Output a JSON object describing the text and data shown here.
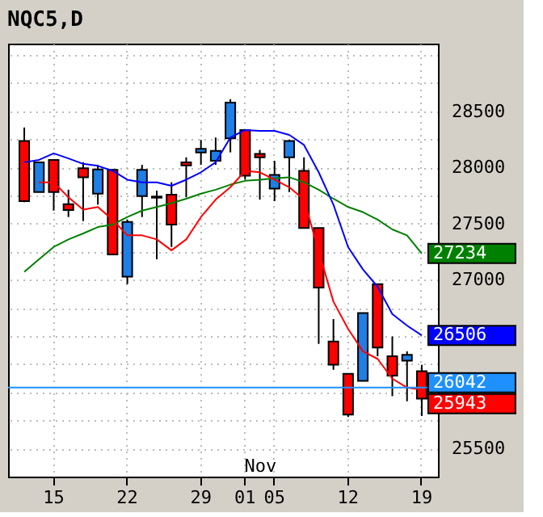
{
  "chart_data": {
    "type": "candlestick",
    "title": "NQC5,D",
    "categories": [
      null,
      null,
      "15",
      null,
      null,
      null,
      null,
      "22",
      null,
      null,
      null,
      null,
      "29",
      null,
      null,
      "01",
      null,
      "05",
      null,
      null,
      null,
      null,
      "12",
      null,
      null,
      null,
      null,
      "19"
    ],
    "ohlc": [
      [
        28235,
        28354,
        27690,
        27700
      ],
      [
        27780,
        28045,
        27780,
        28045
      ],
      [
        28066,
        28066,
        27615,
        27780
      ],
      [
        27673,
        27801,
        27558,
        27620
      ],
      [
        27992,
        28045,
        27522,
        27912
      ],
      [
        27766,
        28022,
        27668,
        27982
      ],
      [
        27978,
        27986,
        27226,
        27226
      ],
      [
        27027,
        27535,
        26961,
        27514
      ],
      [
        27744,
        28022,
        27558,
        27978
      ],
      [
        27740,
        27793,
        27182,
        27730
      ],
      [
        27757,
        27867,
        27292,
        27491
      ],
      [
        28045,
        28089,
        27734,
        28018
      ],
      [
        28133,
        28244,
        28022,
        28164
      ],
      [
        28058,
        28265,
        28022,
        28146
      ],
      [
        28257,
        28606,
        28133,
        28576
      ],
      [
        28332,
        28332,
        27890,
        27925
      ],
      [
        28119,
        28155,
        27713,
        28089
      ],
      [
        27810,
        28058,
        27700,
        27933
      ],
      [
        28089,
        28244,
        27780,
        28235
      ],
      [
        27969,
        28089,
        27461,
        27461
      ],
      [
        27461,
        27461,
        26430,
        26930
      ],
      [
        26452,
        26651,
        26200,
        26244
      ],
      [
        26164,
        26164,
        25780,
        25802
      ],
      [
        26102,
        26704,
        26102,
        26704
      ],
      [
        26961,
        26961,
        26320,
        26398
      ],
      [
        26320,
        26496,
        25965,
        26147
      ],
      [
        26280,
        26364,
        25920,
        26333
      ],
      [
        26187,
        26244,
        25789,
        25943
      ]
    ],
    "colors": [
      "#ff0000",
      "#1e7fe6",
      "#ff0000",
      "#ff0000",
      "#ff0000",
      "#1e7fe6",
      "#ff0000",
      "#1e7fe6",
      "#1e7fe6",
      "#ff0000",
      "#ff0000",
      "#ff0000",
      "#1e7fe6",
      "#1e7fe6",
      "#1e7fe6",
      "#ff0000",
      "#ff0000",
      "#1e7fe6",
      "#1e7fe6",
      "#ff0000",
      "#ff0000",
      "#ff0000",
      "#ff0000",
      "#1e7fe6",
      "#ff0000",
      "#ff0000",
      "#1e7fe6",
      "#ff0000"
    ],
    "series": [
      {
        "type": "line",
        "color": "#008000",
        "values": [
          27071,
          27182,
          27292,
          27359,
          27412,
          27469,
          27491,
          27558,
          27615,
          27647,
          27681,
          27721,
          27766,
          27801,
          27846,
          27880,
          27890,
          27903,
          27912,
          27867,
          27801,
          27721,
          27647,
          27602,
          27535,
          27448,
          27395,
          27234
        ],
        "value_labels": [
          null,
          null,
          null,
          null,
          null,
          null,
          null,
          null,
          null,
          null,
          null,
          null,
          null,
          null,
          null,
          null,
          null,
          null,
          null,
          null,
          null,
          null,
          null,
          null,
          null,
          null,
          null,
          "27234"
        ]
      },
      {
        "type": "line",
        "color": "#0000ff",
        "values": [
          28045,
          28066,
          28124,
          28079,
          28031,
          28013,
          27969,
          27890,
          27867,
          27867,
          27836,
          27890,
          27956,
          28045,
          28265,
          28332,
          28324,
          28324,
          28288,
          28199,
          27956,
          27668,
          27290,
          27093,
          26938,
          26695,
          26593,
          26506
        ],
        "value_labels": [
          null,
          null,
          null,
          null,
          null,
          null,
          null,
          null,
          null,
          null,
          null,
          null,
          null,
          null,
          null,
          null,
          null,
          null,
          null,
          null,
          null,
          null,
          null,
          null,
          null,
          null,
          null,
          "26506"
        ]
      },
      {
        "type": "line",
        "color": "#ff0000",
        "values": [
          null,
          27867,
          27867,
          27734,
          27624,
          27647,
          27535,
          27395,
          27395,
          27359,
          27262,
          27359,
          27558,
          27713,
          27823,
          27969,
          27956,
          27890,
          27823,
          27713,
          27253,
          26806,
          26563,
          26364,
          26297,
          26121,
          26041,
          26023
        ]
      }
    ],
    "ref_lines": [
      {
        "axis": "y",
        "value": 26042,
        "label": "26042",
        "color": "#1e90ff"
      }
    ],
    "annotations": [
      "Nov",
      {
        "text": "25943",
        "x": "19",
        "y": 25943
      }
    ],
    "ylim": [
      25250,
      29100
    ],
    "yticks": [
      {
        "value": 25250,
        "label": null
      },
      25500,
      {
        "value": 25750,
        "label": null
      },
      {
        "value": 26000,
        "label": null
      },
      {
        "value": 26250,
        "label": null
      },
      {
        "value": 26500,
        "label": null
      },
      {
        "value": 26750,
        "label": null
      },
      27000,
      {
        "value": 27250,
        "label": null
      },
      27500,
      {
        "value": 27750,
        "label": null
      },
      28000,
      {
        "value": 28250,
        "label": null
      },
      28500,
      {
        "value": 28750,
        "label": null
      },
      {
        "value": 29000,
        "label": null
      }
    ],
    "grid": true
  }
}
